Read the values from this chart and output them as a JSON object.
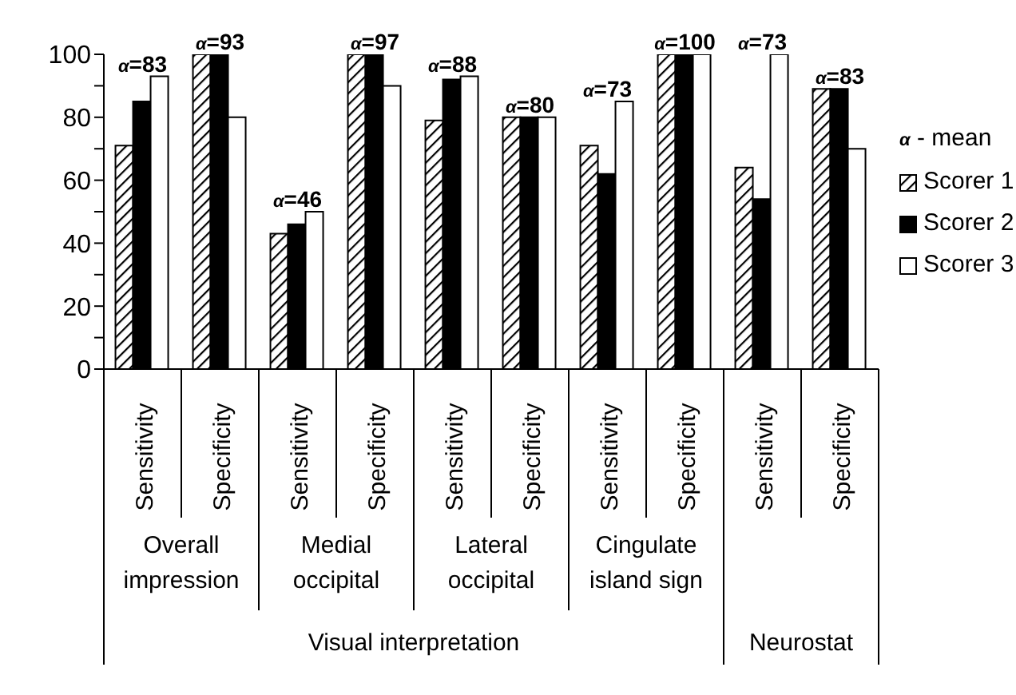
{
  "chart_data": {
    "type": "bar",
    "categories": [
      "Sensitivity",
      "Specificity",
      "Sensitivity",
      "Specificity",
      "Sensitivity",
      "Specificity",
      "Sensitivity",
      "Specificity",
      "Sensitivity",
      "Specificity"
    ],
    "series": [
      {
        "name": "Scorer 1",
        "color": "#000000",
        "values": [
          71,
          100,
          43,
          100,
          79,
          80,
          71,
          100,
          64,
          89
        ]
      },
      {
        "name": "Scorer 2",
        "color": "#000000",
        "values": [
          85,
          100,
          46,
          100,
          92,
          80,
          62,
          100,
          54,
          89
        ]
      },
      {
        "name": "Scorer 3",
        "color": "#ffffff",
        "values": [
          93,
          80,
          50,
          90,
          93,
          80,
          85,
          100,
          100,
          70
        ]
      }
    ],
    "annotations": [
      "α=83",
      "α=93",
      "α=46",
      "α=97",
      "α=88",
      "α=80",
      "α=73",
      "α=100",
      "α=73",
      "α=83",
      "α - mean",
      "Overall impression",
      "Medial occipital",
      "Lateral occipital",
      "Cingulate island sign",
      "Visual interpretation",
      "Neurostat"
    ],
    "ylim": [
      0,
      100
    ],
    "yticks": [
      0,
      {
        "value": 10,
        "label": null
      },
      20,
      {
        "value": 30,
        "label": null
      },
      40,
      {
        "value": 50,
        "label": null
      },
      60,
      {
        "value": 70,
        "label": null
      },
      80,
      {
        "value": 90,
        "label": null
      },
      100
    ],
    "legend": "right"
  }
}
